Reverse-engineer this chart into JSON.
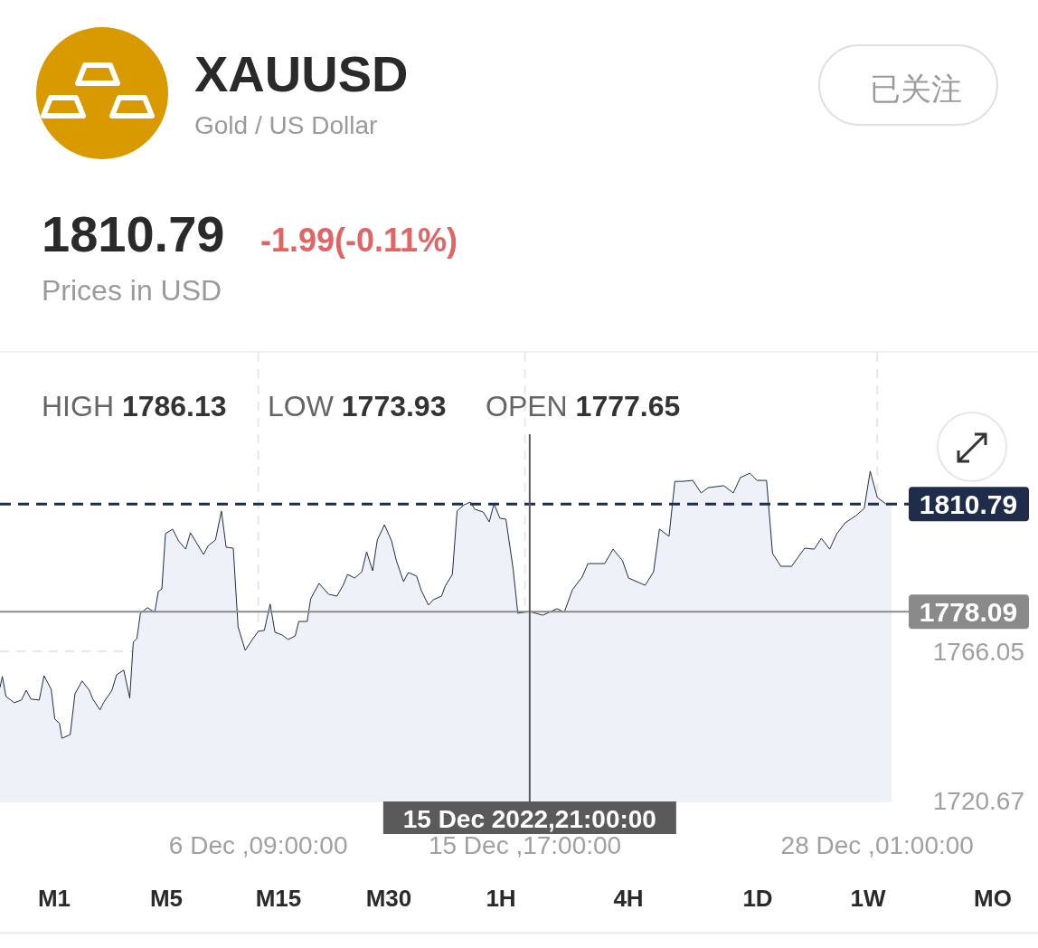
{
  "chart_data": {
    "type": "area",
    "title": "XAUUSD",
    "subtitle": "Gold / US Dollar",
    "annotations": [
      "1810.79",
      "-1.99(-0.11%)",
      "Prices in USD",
      "HIGH **1786.13**",
      "LOW **1773.93**",
      "OPEN **1777.65**",
      "已关注",
      "M1",
      "M5",
      "M15",
      "M30",
      "1H",
      "4H",
      "1D",
      "1W",
      "MO"
    ],
    "x": [
      "2022-11-27T08:00",
      "2022-11-27T10:00",
      "2022-11-27T13:00",
      "2022-11-27T20:00",
      "2022-11-28T02:00",
      "2022-11-28T06:00",
      "2022-11-28T10:00",
      "2022-11-28T17:00",
      "2022-11-28T21:00",
      "2022-11-29T03:00",
      "2022-11-29T06:00",
      "2022-11-29T10:00",
      "2022-11-29T12:00",
      "2022-11-29T19:00",
      "2022-11-29T23:00",
      "2022-11-30T05:00",
      "2022-11-30T11:00",
      "2022-11-30T14:00",
      "2022-11-30T20:00",
      "2022-11-30T23:00",
      "2022-12-01T06:00",
      "2022-12-01T10:00",
      "2022-12-01T16:00",
      "2022-12-01T21:00",
      "2022-12-02T00:00",
      "2022-12-02T03:00",
      "2022-12-02T06:00",
      "2022-12-02T12:00",
      "2022-12-02T18:00",
      "2022-12-02T21:00",
      "2022-12-03T00:00",
      "2022-12-03T03:00",
      "2022-12-03T09:00",
      "2022-12-03T14:00",
      "2022-12-03T20:00",
      "2022-12-04T00:00",
      "2022-12-04T05:00",
      "2022-12-04T11:00",
      "2022-12-04T15:00",
      "2022-12-04T21:00",
      "2022-12-05T02:00",
      "2022-12-05T06:00",
      "2022-12-05T12:00",
      "2022-12-05T16:00",
      "2022-12-05T22:00",
      "2022-12-06T04:00",
      "2022-12-06T09:00",
      "2022-12-06T14:00",
      "2022-12-06T19:00",
      "2022-12-06T23:00",
      "2022-12-07T05:00",
      "2022-12-07T10:00",
      "2022-12-07T16:00",
      "2022-12-07T19:00",
      "2022-12-08T02:00",
      "2022-12-08T05:00",
      "2022-12-08T12:00",
      "2022-12-08T20:00",
      "2022-12-09T03:00",
      "2022-12-09T08:00",
      "2022-12-09T12:00",
      "2022-12-09T18:00",
      "2022-12-10T00:00",
      "2022-12-10T04:00",
      "2022-12-10T09:00",
      "2022-12-10T13:00",
      "2022-12-10T19:00",
      "2022-12-11T01:00",
      "2022-12-11T05:00",
      "2022-12-11T11:00",
      "2022-12-11T15:00",
      "2022-12-11T22:00",
      "2022-12-12T02:00",
      "2022-12-12T08:00",
      "2022-12-12T12:00",
      "2022-12-12T19:00",
      "2022-12-12T22:00",
      "2022-12-13T04:00",
      "2022-12-13T08:00",
      "2022-12-13T14:00",
      "2022-12-13T19:00",
      "2022-12-13T23:00",
      "2022-12-14T06:00",
      "2022-12-14T11:00",
      "2022-12-14T15:00",
      "2022-12-14T20:00",
      "2022-12-15T01:00",
      "2022-12-15T07:00",
      "2022-12-15T11:00",
      "2022-12-15T21:00",
      "2022-12-16T08:00",
      "2022-12-16T20:00",
      "2022-12-17T02:00",
      "2022-12-17T09:00",
      "2022-12-17T17:00",
      "2022-12-17T22:00",
      "2022-12-18T12:00",
      "2022-12-18T19:00",
      "2022-12-19T03:00",
      "2022-12-19T08:00",
      "2022-12-19T22:00",
      "2022-12-20T05:00",
      "2022-12-20T10:00",
      "2022-12-20T18:00",
      "2022-12-20T23:00",
      "2022-12-21T05:00",
      "2022-12-21T14:00",
      "2022-12-21T21:00",
      "2022-12-22T03:00",
      "2022-12-22T16:00",
      "2022-12-23T00:00",
      "2022-12-23T06:00",
      "2022-12-23T14:00",
      "2022-12-23T20:00",
      "2022-12-24T04:00",
      "2022-12-24T09:00",
      "2022-12-24T16:00",
      "2022-12-25T01:00",
      "2022-12-25T12:00",
      "2022-12-25T20:00",
      "2022-12-26T02:00",
      "2022-12-26T09:00",
      "2022-12-26T15:00",
      "2022-12-26T22:00",
      "2022-12-27T07:00",
      "2022-12-27T14:00",
      "2022-12-27T19:00",
      "2022-12-28T01:00",
      "2022-12-28T08:00",
      "2022-12-28T13:00"
    ],
    "values": [
      1755.1,
      1758.4,
      1752.3,
      1750.4,
      1751.2,
      1754.2,
      1751.5,
      1751.2,
      1758.6,
      1754.5,
      1745.4,
      1744.1,
      1739.6,
      1740.7,
      1753.1,
      1757.0,
      1754.2,
      1751.5,
      1748.2,
      1750.4,
      1754.2,
      1758.9,
      1760.3,
      1751.8,
      1768.8,
      1769.9,
      1777.6,
      1779.3,
      1777.9,
      1784.2,
      1785.0,
      1801.8,
      1803.2,
      1799.6,
      1797.1,
      1802.1,
      1799.1,
      1795.5,
      1798.2,
      1799.9,
      1808.7,
      1797.7,
      1797.4,
      1773.5,
      1766.3,
      1769.6,
      1772.1,
      1772.4,
      1780.4,
      1771.8,
      1771.0,
      1769.6,
      1770.7,
      1775.1,
      1775.1,
      1782.0,
      1786.7,
      1783.4,
      1782.8,
      1785.9,
      1789.4,
      1788.3,
      1790.2,
      1796.3,
      1790.5,
      1799.9,
      1804.5,
      1799.6,
      1793.6,
      1787.2,
      1790.0,
      1788.9,
      1784.5,
      1780.1,
      1781.7,
      1782.8,
      1785.9,
      1789.4,
      1808.7,
      1810.6,
      1811.4,
      1809.2,
      1808.4,
      1805.4,
      1810.9,
      1806.5,
      1806.2,
      1791.3,
      1777.6,
      1778.1,
      1777.0,
      1779.0,
      1777.9,
      1784.8,
      1788.6,
      1792.7,
      1792.7,
      1797.1,
      1793.6,
      1788.3,
      1786.1,
      1790.2,
      1803.2,
      1801.0,
      1817.7,
      1817.7,
      1818.0,
      1814.2,
      1815.8,
      1816.4,
      1814.2,
      1818.9,
      1820.2,
      1818.0,
      1818.0,
      1795.8,
      1791.9,
      1791.9,
      1797.4,
      1797.1,
      1800.4,
      1797.1,
      1801.8,
      1805.1,
      1807.3,
      1809.5,
      1820.8,
      1812.8,
      1810.9,
      1810.8
    ],
    "color": "#1f2d4a",
    "xlim": [
      "2022-11-27T08:00",
      "2022-12-28T16:00"
    ],
    "ylim": [
      1720.1,
      1856.8
    ],
    "xticks": [
      {
        "value": "2022-12-06T09:00",
        "label": "6 Dec ,09:00:00"
      },
      {
        "value": "2022-12-15T17:00",
        "label": "15 Dec ,17:00:00"
      },
      {
        "value": "2022-12-28T01:00",
        "label": "28 Dec ,01:00:00"
      }
    ],
    "yticks": [
      1766.05,
      1720.67
    ],
    "grid": true,
    "ref_lines": [
      {
        "axis": "y",
        "value": 1810.79,
        "label": "1810.79",
        "color": "#1f2d4a",
        "line_style": "dashed"
      },
      {
        "axis": "y",
        "value": 1778.09,
        "label": "1778.09",
        "color": "#8a8a8a",
        "line_style": "solid"
      },
      {
        "axis": "x",
        "value": "2022-12-15T21:00",
        "label": "15 Dec 2022,21:00:00",
        "color": "#5a5a5a",
        "line_style": "solid"
      }
    ]
  }
}
